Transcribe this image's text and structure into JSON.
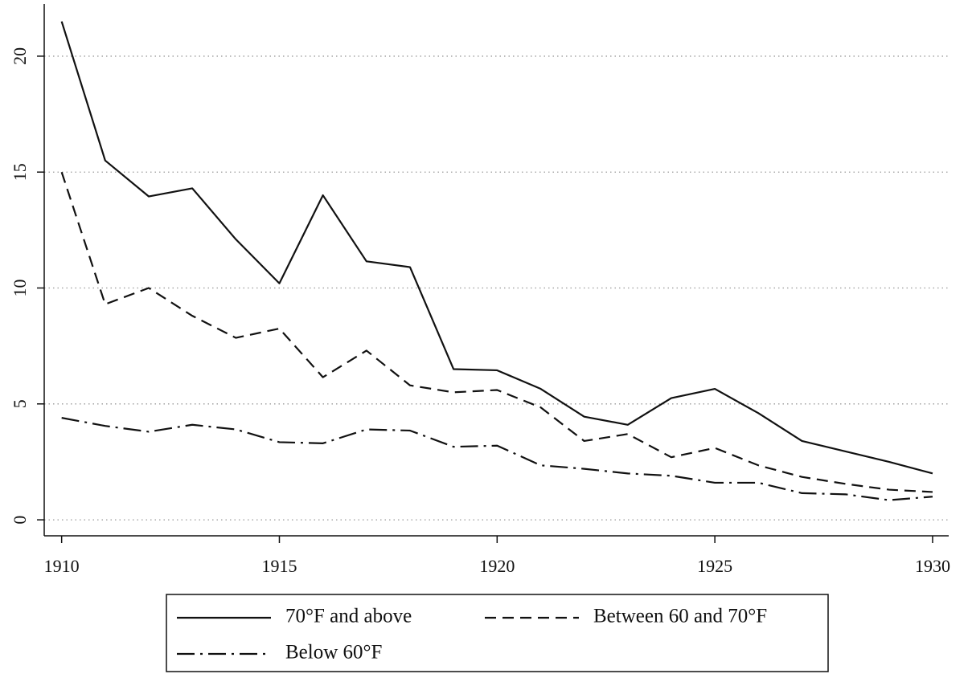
{
  "chart_data": {
    "type": "line",
    "x": [
      1910,
      1911,
      1912,
      1913,
      1914,
      1915,
      1916,
      1917,
      1918,
      1919,
      1920,
      1921,
      1922,
      1923,
      1924,
      1925,
      1926,
      1927,
      1928,
      1929,
      1930
    ],
    "series": [
      {
        "name": "70°F and above",
        "color": "#111111",
        "dash": "solid",
        "values": [
          21.5,
          15.5,
          13.95,
          14.3,
          12.1,
          10.2,
          14.0,
          11.15,
          10.9,
          6.5,
          6.45,
          5.65,
          4.45,
          4.1,
          5.25,
          5.65,
          4.6,
          3.4,
          2.95,
          2.5,
          2.0
        ]
      },
      {
        "name": "Between 60 and 70°F",
        "color": "#111111",
        "dash": "dash",
        "values": [
          15.0,
          9.3,
          10.0,
          8.8,
          7.85,
          8.25,
          6.15,
          7.3,
          5.8,
          5.5,
          5.6,
          4.85,
          3.4,
          3.7,
          2.7,
          3.1,
          2.35,
          1.85,
          1.55,
          1.3,
          1.2
        ]
      },
      {
        "name": "Below 60°F",
        "color": "#111111",
        "dash": "dashdot",
        "values": [
          4.4,
          4.05,
          3.8,
          4.1,
          3.9,
          3.35,
          3.3,
          3.9,
          3.85,
          3.15,
          3.2,
          2.35,
          2.2,
          2.0,
          1.9,
          1.6,
          1.6,
          1.15,
          1.1,
          0.85,
          1.0
        ]
      }
    ],
    "xlim": [
      1909.6,
      1930.37
    ],
    "xticks": [
      1910,
      1915,
      1920,
      1925,
      1930
    ],
    "ylim": [
      -0.69,
      22.25
    ],
    "yticks": [
      0,
      5,
      10,
      15,
      20
    ],
    "grid": true,
    "legend": "bottom"
  }
}
